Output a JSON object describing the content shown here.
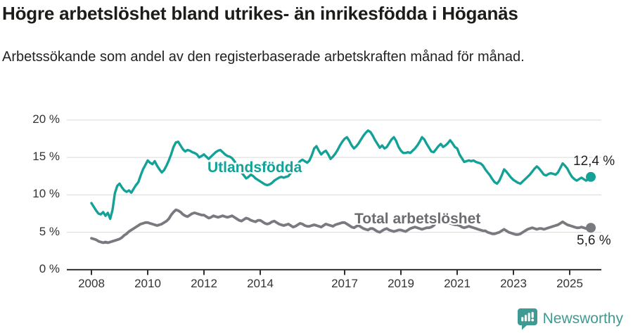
{
  "page": {
    "title": "Högre arbetslöshet bland utrikes- än inrikesfödda i Höganäs",
    "subtitle": "Arbetssökande som andel av den registerbaserade arbetskraften månad för månad."
  },
  "colors": {
    "accent_teal": "#14a197",
    "series_gray": "#797980",
    "label_gray": "#6b6b70",
    "grid": "#d9d9d9",
    "axis": "#2f2f2f",
    "text_dark": "#1c1c19",
    "logo_teal": "#3f9a93"
  },
  "logo": {
    "text": "Newsworthy"
  },
  "chart_data": {
    "type": "line",
    "title": "Högre arbetslöshet bland utrikes- än inrikesfödda i Höganäs",
    "subtitle": "Arbetssökande som andel av den registerbaserade arbetskraften månad för månad.",
    "unit": "%",
    "x_start_year": 2008,
    "x_months_per_point": 1,
    "x_end": "2025-10",
    "ylim": [
      0,
      20
    ],
    "yticks": [
      0,
      5,
      10,
      15,
      20
    ],
    "ytick_labels": [
      "0 %",
      "5 %",
      "10 %",
      "15 %",
      "20 %"
    ],
    "xticks": [
      2008,
      2010,
      2012,
      2014,
      2017,
      2019,
      2021,
      2023,
      2025
    ],
    "xtick_labels": [
      "2008",
      "2010",
      "2012",
      "2014",
      "2017",
      "2019",
      "2021",
      "2023",
      "2025"
    ],
    "grid": "horizontal",
    "legend": "inline-labels",
    "series": [
      {
        "name": "Utlandsfödda",
        "color": "#14a197",
        "end_label": "12,4 %",
        "end_value": 12.4,
        "values": [
          8.9,
          8.4,
          7.9,
          7.5,
          7.4,
          7.7,
          7.2,
          7.6,
          6.8,
          8.0,
          10.2,
          11.2,
          11.5,
          11.0,
          10.6,
          10.4,
          10.6,
          10.3,
          10.8,
          11.3,
          11.7,
          12.6,
          13.4,
          14.0,
          14.6,
          14.3,
          14.1,
          14.5,
          13.9,
          13.4,
          13.0,
          13.3,
          13.9,
          14.6,
          15.4,
          16.4,
          17.0,
          17.1,
          16.6,
          16.1,
          15.8,
          16.0,
          15.9,
          15.7,
          15.6,
          15.4,
          15.0,
          15.2,
          15.4,
          15.1,
          14.8,
          15.1,
          15.4,
          15.7,
          15.9,
          16.0,
          15.7,
          15.4,
          15.2,
          15.1,
          14.9,
          14.5,
          14.0,
          13.5,
          13.0,
          12.6,
          12.2,
          12.4,
          12.7,
          12.5,
          12.2,
          12.0,
          11.8,
          11.6,
          11.4,
          11.3,
          11.4,
          11.6,
          11.9,
          12.1,
          12.3,
          12.4,
          12.3,
          12.4,
          12.5,
          12.9,
          13.3,
          13.7,
          14.1,
          14.5,
          14.7,
          14.5,
          14.3,
          14.6,
          15.3,
          16.2,
          16.5,
          15.9,
          15.4,
          15.7,
          15.9,
          15.4,
          14.8,
          15.1,
          15.5,
          16.0,
          16.6,
          17.1,
          17.5,
          17.7,
          17.2,
          16.6,
          16.2,
          16.5,
          16.9,
          17.4,
          17.9,
          18.3,
          18.6,
          18.4,
          17.9,
          17.3,
          16.8,
          16.3,
          16.6,
          16.2,
          16.4,
          16.9,
          17.4,
          17.7,
          17.2,
          16.4,
          15.9,
          15.6,
          15.6,
          15.7,
          15.6,
          15.9,
          16.2,
          16.6,
          17.1,
          17.7,
          17.4,
          16.8,
          16.3,
          15.8,
          15.7,
          16.1,
          16.5,
          16.8,
          16.4,
          16.6,
          16.9,
          17.3,
          16.9,
          16.4,
          16.2,
          15.4,
          14.9,
          14.4,
          14.5,
          14.6,
          14.5,
          14.6,
          14.4,
          14.3,
          14.2,
          13.9,
          13.4,
          13.0,
          12.6,
          12.1,
          11.7,
          11.5,
          11.9,
          12.6,
          13.4,
          13.1,
          12.7,
          12.3,
          12.0,
          11.8,
          11.6,
          11.5,
          11.8,
          12.1,
          12.4,
          12.7,
          13.1,
          13.5,
          13.8,
          13.5,
          13.1,
          12.7,
          12.6,
          12.8,
          12.9,
          12.8,
          12.7,
          13.0,
          13.6,
          14.2,
          13.9,
          13.5,
          12.9,
          12.4,
          12.1,
          11.9,
          12.1,
          12.3,
          12.1,
          11.9,
          12.1,
          12.4
        ]
      },
      {
        "name": "Total arbetslöshet",
        "color": "#797980",
        "end_label": "5,6 %",
        "end_value": 5.6,
        "values": [
          4.2,
          4.1,
          4.0,
          3.8,
          3.7,
          3.6,
          3.7,
          3.6,
          3.7,
          3.8,
          3.9,
          4.0,
          4.1,
          4.3,
          4.6,
          4.8,
          5.1,
          5.3,
          5.5,
          5.7,
          5.9,
          6.1,
          6.2,
          6.3,
          6.3,
          6.2,
          6.1,
          6.0,
          5.9,
          6.0,
          6.1,
          6.3,
          6.5,
          6.8,
          7.3,
          7.7,
          8.0,
          7.9,
          7.7,
          7.4,
          7.2,
          7.1,
          7.3,
          7.5,
          7.6,
          7.5,
          7.4,
          7.3,
          7.3,
          7.1,
          6.9,
          7.0,
          7.2,
          7.1,
          7.0,
          7.1,
          7.2,
          7.1,
          7.0,
          7.1,
          7.2,
          7.0,
          6.8,
          6.6,
          6.5,
          6.7,
          6.9,
          6.8,
          6.6,
          6.5,
          6.4,
          6.6,
          6.6,
          6.4,
          6.2,
          6.1,
          6.2,
          6.4,
          6.5,
          6.3,
          6.1,
          6.0,
          5.9,
          6.0,
          6.1,
          5.9,
          5.7,
          5.8,
          6.0,
          6.2,
          6.1,
          5.9,
          5.8,
          5.8,
          5.9,
          6.0,
          5.9,
          5.8,
          5.7,
          5.9,
          6.1,
          6.0,
          5.9,
          5.8,
          6.0,
          6.1,
          6.2,
          6.3,
          6.3,
          6.1,
          5.9,
          5.7,
          5.6,
          5.8,
          5.9,
          5.7,
          5.5,
          5.4,
          5.3,
          5.5,
          5.5,
          5.3,
          5.1,
          5.0,
          5.2,
          5.4,
          5.5,
          5.3,
          5.2,
          5.1,
          5.2,
          5.3,
          5.3,
          5.2,
          5.1,
          5.3,
          5.5,
          5.6,
          5.7,
          5.6,
          5.5,
          5.4,
          5.5,
          5.6,
          5.6,
          5.7,
          5.9,
          6.3,
          6.5,
          6.6,
          6.5,
          6.4,
          6.3,
          6.2,
          6.1,
          6.0,
          6.0,
          5.9,
          5.7,
          5.6,
          5.7,
          5.8,
          5.7,
          5.6,
          5.5,
          5.4,
          5.3,
          5.2,
          5.2,
          5.0,
          4.9,
          4.8,
          4.8,
          4.9,
          5.0,
          5.2,
          5.4,
          5.2,
          5.0,
          4.9,
          4.8,
          4.7,
          4.7,
          4.8,
          5.0,
          5.2,
          5.4,
          5.5,
          5.6,
          5.5,
          5.4,
          5.5,
          5.5,
          5.4,
          5.5,
          5.6,
          5.7,
          5.8,
          5.9,
          6.0,
          6.2,
          6.4,
          6.2,
          6.0,
          5.9,
          5.8,
          5.7,
          5.6,
          5.6,
          5.7,
          5.6,
          5.5,
          5.5,
          5.6
        ]
      }
    ]
  }
}
